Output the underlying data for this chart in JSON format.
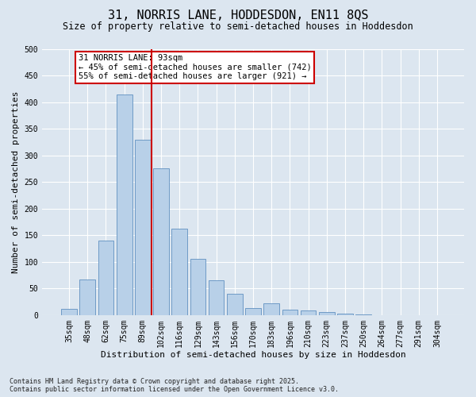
{
  "title": "31, NORRIS LANE, HODDESDON, EN11 8QS",
  "subtitle": "Size of property relative to semi-detached houses in Hoddesdon",
  "xlabel": "Distribution of semi-detached houses by size in Hoddesdon",
  "ylabel": "Number of semi-detached properties",
  "categories": [
    "35sqm",
    "48sqm",
    "62sqm",
    "75sqm",
    "89sqm",
    "102sqm",
    "116sqm",
    "129sqm",
    "143sqm",
    "156sqm",
    "170sqm",
    "183sqm",
    "196sqm",
    "210sqm",
    "223sqm",
    "237sqm",
    "250sqm",
    "264sqm",
    "277sqm",
    "291sqm",
    "304sqm"
  ],
  "values": [
    12,
    67,
    140,
    415,
    330,
    275,
    162,
    105,
    65,
    40,
    13,
    22,
    10,
    8,
    5,
    3,
    1,
    0,
    0,
    0,
    0
  ],
  "bar_color": "#b8d0e8",
  "bar_edge_color": "#6090c0",
  "vline_x": 4.5,
  "vline_color": "#cc0000",
  "annotation_text": "31 NORRIS LANE: 93sqm\n← 45% of semi-detached houses are smaller (742)\n55% of semi-detached houses are larger (921) →",
  "annotation_box_color": "#ffffff",
  "annotation_box_edge": "#cc0000",
  "ylim": [
    0,
    500
  ],
  "yticks": [
    0,
    50,
    100,
    150,
    200,
    250,
    300,
    350,
    400,
    450,
    500
  ],
  "bg_color": "#dce6f0",
  "plot_bg_color": "#dce6f0",
  "footer": "Contains HM Land Registry data © Crown copyright and database right 2025.\nContains public sector information licensed under the Open Government Licence v3.0.",
  "title_fontsize": 11,
  "subtitle_fontsize": 8.5,
  "axis_label_fontsize": 8,
  "tick_fontsize": 7,
  "footer_fontsize": 6,
  "annotation_fontsize": 7.5
}
